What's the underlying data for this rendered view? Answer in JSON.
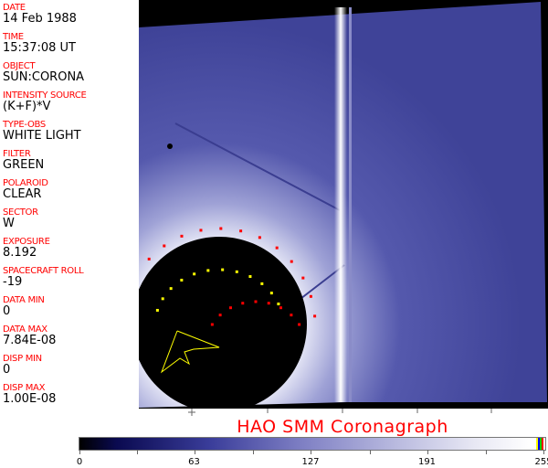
{
  "fields": [
    {
      "label": "DATE",
      "value": "14 Feb 1988"
    },
    {
      "label": "TIME",
      "value": "15:37:08 UT"
    },
    {
      "label": "OBJECT",
      "value": "SUN:CORONA"
    },
    {
      "label": "INTENSITY SOURCE",
      "value": "(K+F)*V"
    },
    {
      "label": "TYPE-OBS",
      "value": "WHITE LIGHT"
    },
    {
      "label": "FILTER",
      "value": "GREEN"
    },
    {
      "label": "POLAROID",
      "value": "CLEAR"
    },
    {
      "label": "SECTOR",
      "value": "W"
    },
    {
      "label": "EXPOSURE",
      "value": "8.192"
    },
    {
      "label": "SPACECRAFT ROLL",
      "value": "-19"
    },
    {
      "label": "DATA MIN",
      "value": "0"
    },
    {
      "label": "DATA MAX",
      "value": "7.84E-08"
    },
    {
      "label": "DISP MIN",
      "value": "0"
    },
    {
      "label": "DISP MAX",
      "value": "1.00E-08"
    }
  ],
  "title": "HAO   SMM  Coronagraph",
  "colorbar": {
    "ticks": [
      "0",
      "63",
      "127",
      "191",
      "255"
    ],
    "min": 0,
    "max": 255,
    "special_colors": [
      "#ffff00",
      "#0000ff",
      "#00ff00",
      "#ff0000"
    ]
  },
  "colors": {
    "label": "#ff0000",
    "image_blue": "#4a4fa3",
    "occulter": "#000000",
    "marker_red": "#ff0000",
    "marker_yellow": "#ffff00"
  }
}
